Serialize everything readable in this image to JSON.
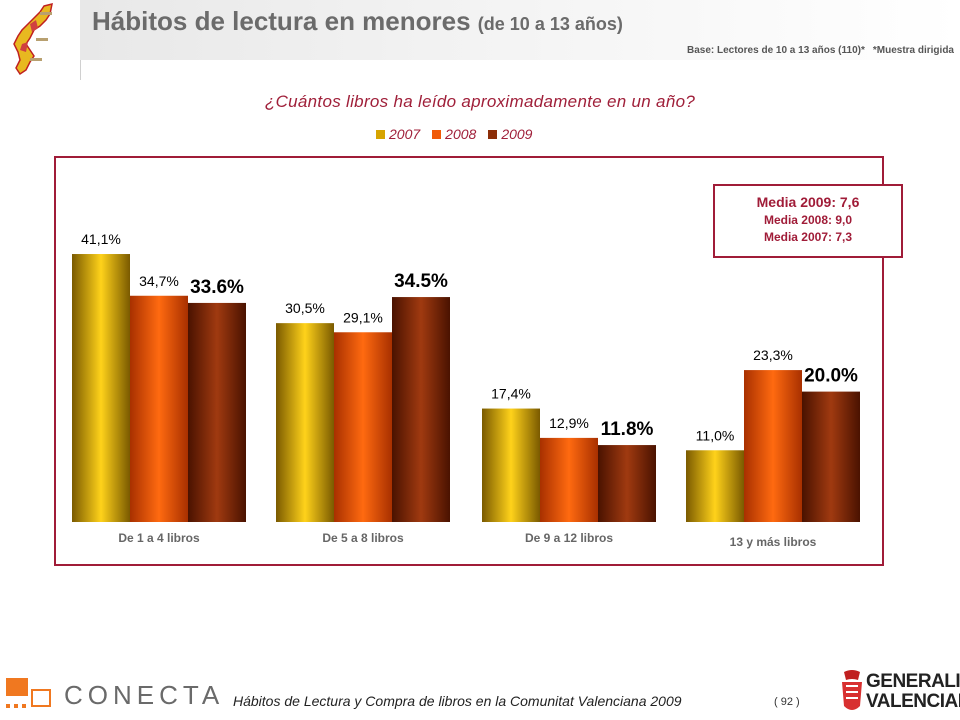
{
  "header": {
    "title": "Hábitos de lectura en menores",
    "title_suffix": "(de 10 a 13 años)",
    "base_note": "Base: Lectores de 10 a 13 años (110)*",
    "sample_note": "*Muestra dirigida"
  },
  "question": "¿Cuántos libros ha leído aproximadamente en un año?",
  "colors": {
    "2007": "#d6a400",
    "2008": "#f05a08",
    "2009": "#8c2e08",
    "accent": "#a01c38"
  },
  "media_box": {
    "line1": "Media 2009: 7,6",
    "line2": "Media 2008: 9,0",
    "line3": "Media 2007: 7,3"
  },
  "chart_data": {
    "type": "bar",
    "categories": [
      "De 1 a 4 libros",
      "De 5 a 8 libros",
      "De 9 a 12 libros",
      "13 y más libros"
    ],
    "series": [
      {
        "name": "2007",
        "values": [
          41.1,
          30.5,
          17.4,
          11.0
        ],
        "labels": [
          "41,1%",
          "30,5%",
          "17,4%",
          "11,0%"
        ]
      },
      {
        "name": "2008",
        "values": [
          34.7,
          29.1,
          12.9,
          23.3
        ],
        "labels": [
          "34,7%",
          "29,1%",
          "12,9%",
          "23,3%"
        ]
      },
      {
        "name": "2009",
        "values": [
          33.6,
          34.5,
          11.8,
          20.0
        ],
        "labels": [
          "33.6%",
          "34.5%",
          "11.8%",
          "20.0%"
        ]
      }
    ],
    "ylim": [
      0,
      45
    ],
    "legend_position": "top",
    "grid": false
  },
  "footer": {
    "brand": "CONECTA",
    "caption": "Hábitos de Lectura y Compra de libros en la Comunitat Valenciana 2009",
    "page": "( 92 )",
    "gv_line1": "GENERALITAT",
    "gv_line2": "VALENCIANA"
  }
}
